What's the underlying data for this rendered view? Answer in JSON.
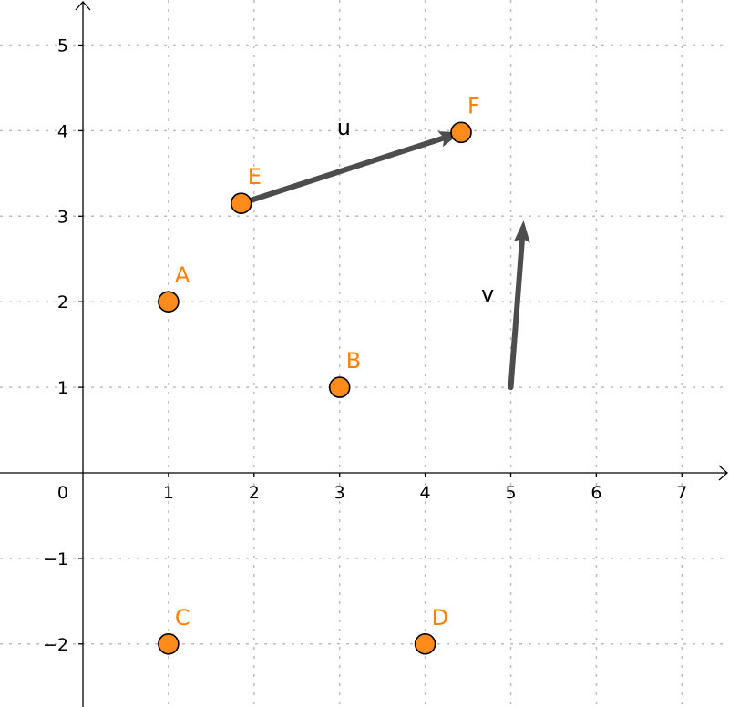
{
  "axes": {
    "x_range": [
      -1,
      7.5
    ],
    "y_range": [
      -2.7,
      5.6
    ],
    "x_ticks": [
      {
        "value": 1,
        "label": "1"
      },
      {
        "value": 2,
        "label": "2"
      },
      {
        "value": 3,
        "label": "3"
      },
      {
        "value": 4,
        "label": "4"
      },
      {
        "value": 5,
        "label": "5"
      },
      {
        "value": 6,
        "label": "6"
      },
      {
        "value": 7,
        "label": "7"
      }
    ],
    "y_ticks": [
      {
        "value": 5,
        "label": "5"
      },
      {
        "value": 4,
        "label": "4"
      },
      {
        "value": 3,
        "label": "3"
      },
      {
        "value": 2,
        "label": "2"
      },
      {
        "value": 1,
        "label": "1"
      },
      {
        "value": -1,
        "label": "−1"
      },
      {
        "value": -2,
        "label": "−2"
      }
    ],
    "origin_label": "0",
    "grid": true
  },
  "colors": {
    "point_fill": "#ff8c1a",
    "point_label": "#ff8000",
    "vector": "#4d4d4d",
    "grid": "#bdbdbd",
    "axis": "#000000"
  },
  "points": [
    {
      "name": "A",
      "x": 1,
      "y": 2
    },
    {
      "name": "B",
      "x": 3,
      "y": 1
    },
    {
      "name": "C",
      "x": 1,
      "y": -2
    },
    {
      "name": "D",
      "x": 4,
      "y": -2
    },
    {
      "name": "E",
      "x": 1.85,
      "y": 3.15
    },
    {
      "name": "F",
      "x": 4.42,
      "y": 3.98
    }
  ],
  "vectors": [
    {
      "name": "u",
      "from": [
        1.85,
        3.15
      ],
      "to": [
        4.42,
        3.98
      ]
    },
    {
      "name": "v",
      "from": [
        5,
        1
      ],
      "to": [
        5.15,
        2.95
      ]
    }
  ]
}
